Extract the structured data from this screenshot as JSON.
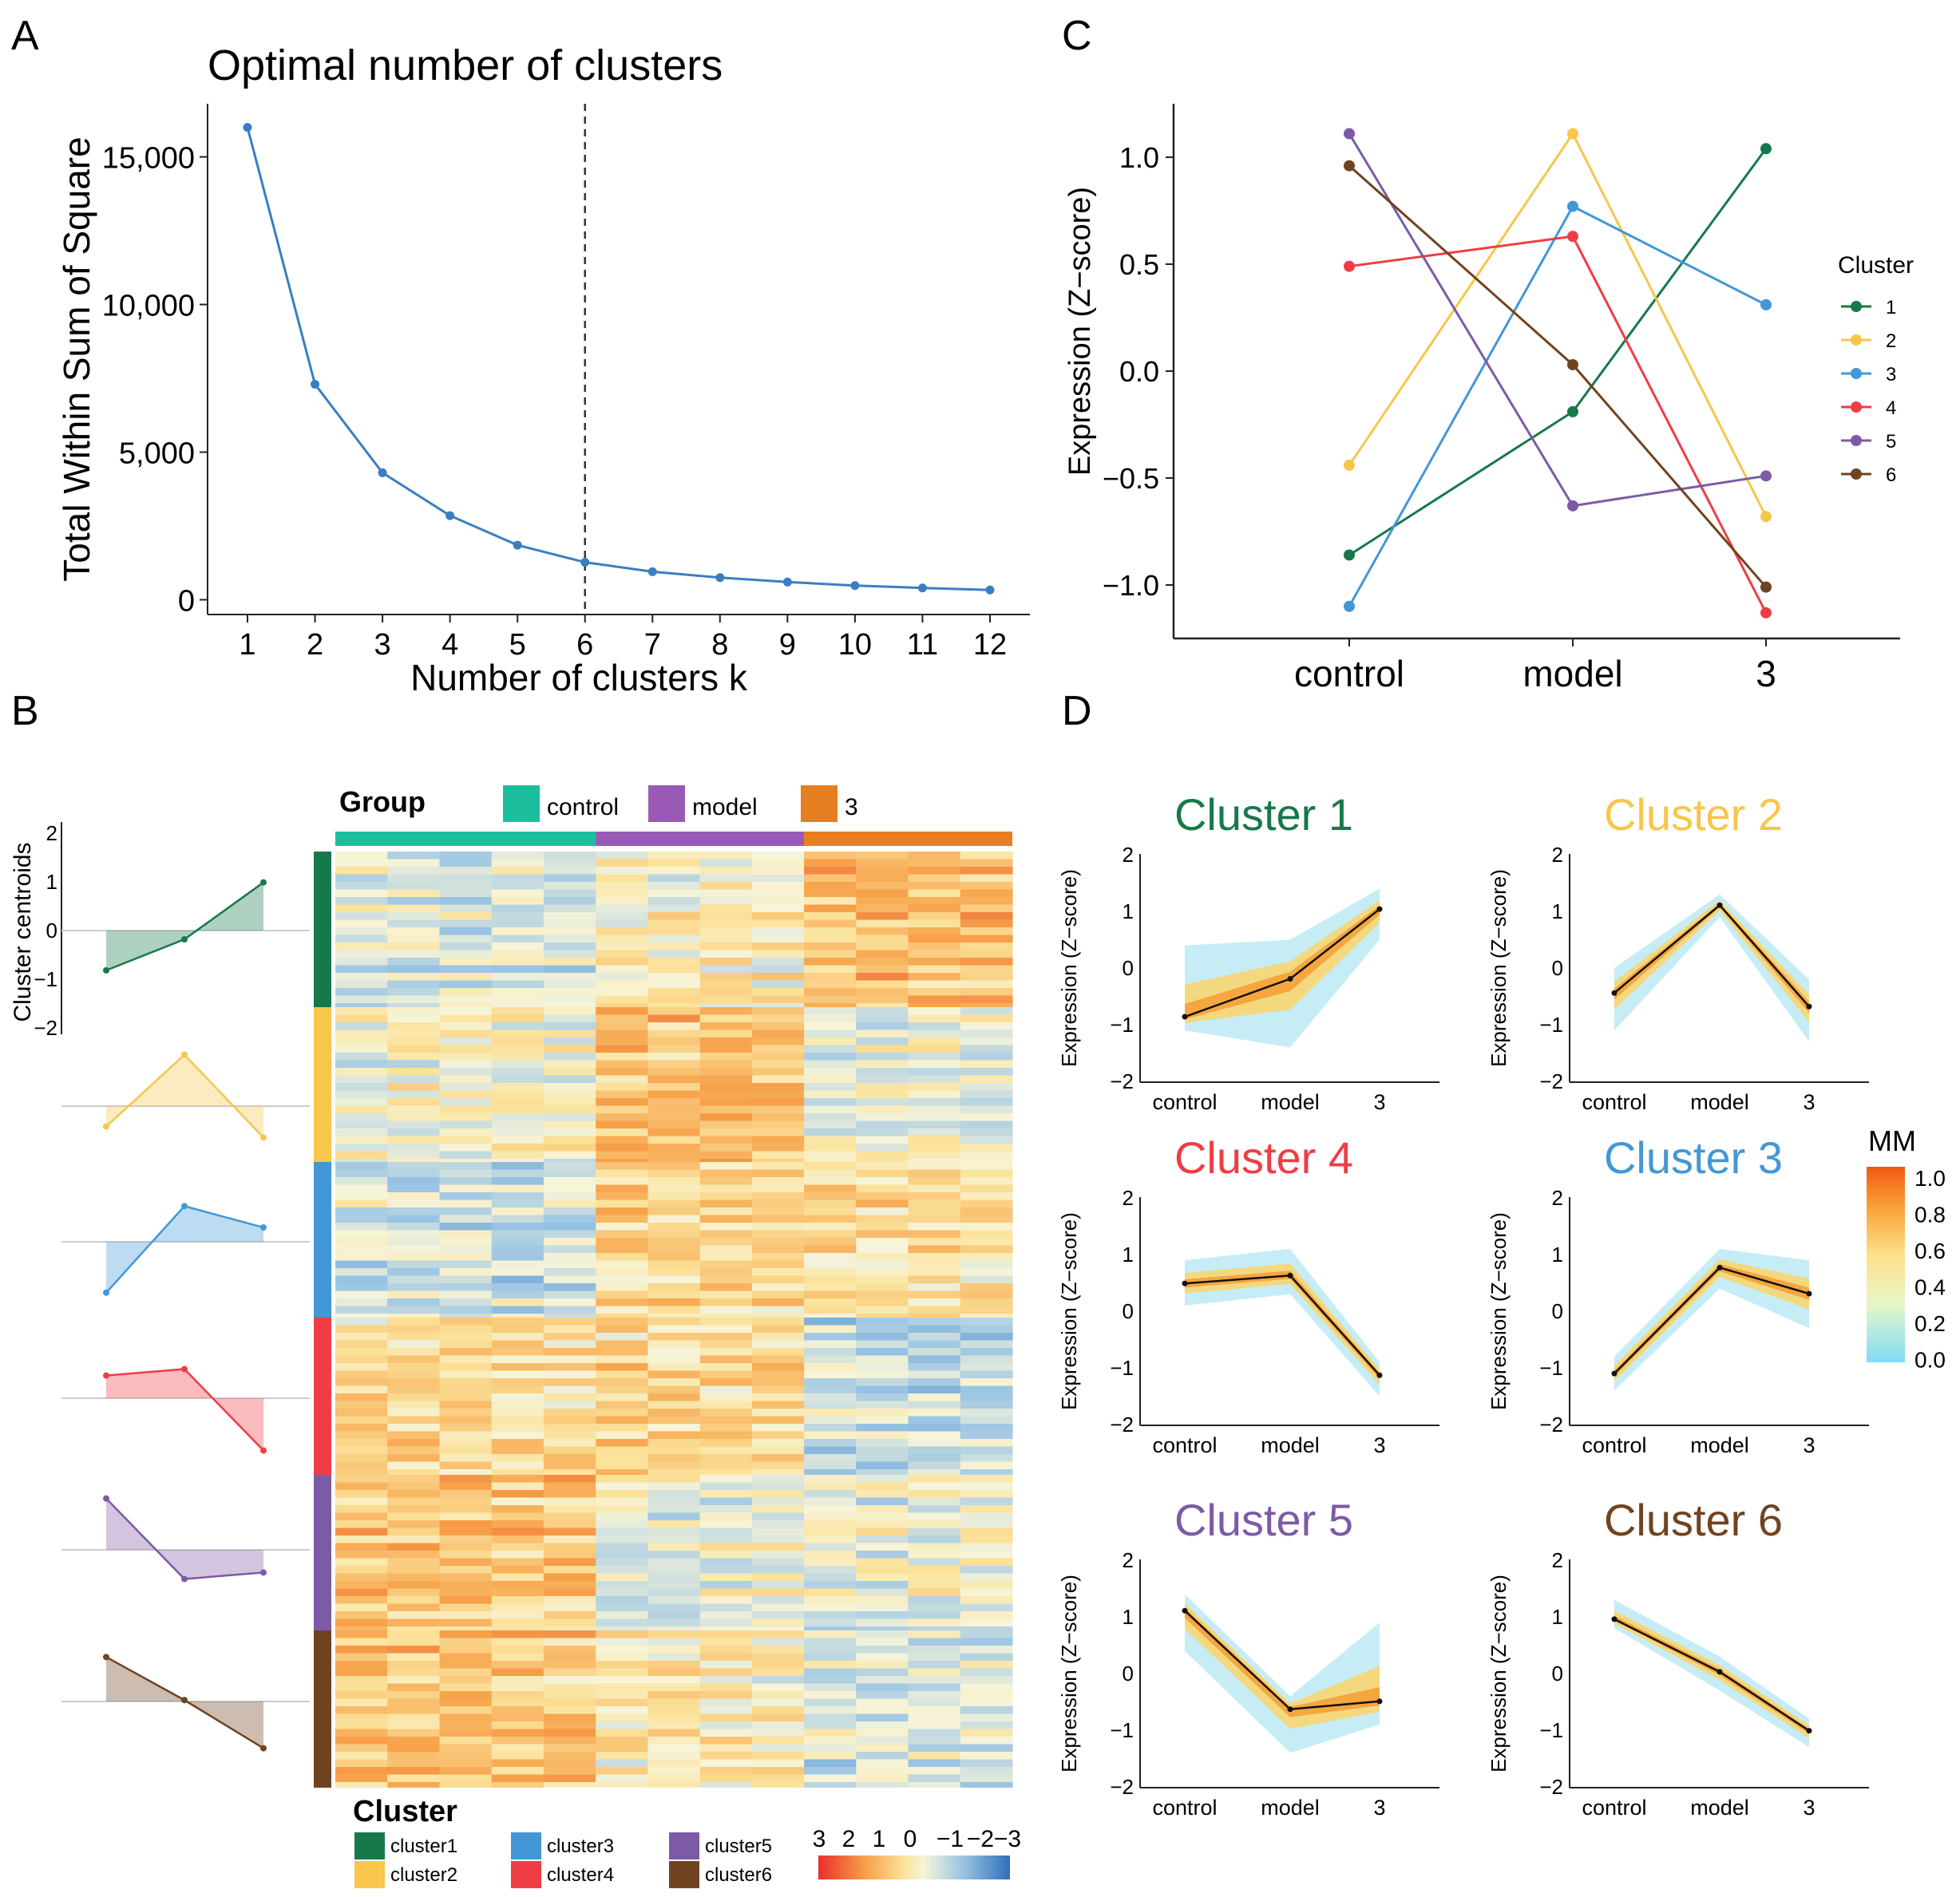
{
  "panels": {
    "a": {
      "letter": "A"
    },
    "b": {
      "letter": "B"
    },
    "c": {
      "letter": "C"
    },
    "d": {
      "letter": "D"
    }
  },
  "palette": {
    "clusters": [
      "#16794a",
      "#f7c64a",
      "#4397d6",
      "#ef3d45",
      "#7d5aa6",
      "#704320"
    ],
    "groups": [
      "#1bbf9b",
      "#9b59b6",
      "#e67e22"
    ],
    "line_a": "#3a7ec1"
  },
  "chart_data": [
    {
      "id": "A",
      "type": "line",
      "title": "Optimal number of clusters",
      "xlabel": "Number of clusters k",
      "ylabel": "Total Within Sum of Square",
      "x": [
        1,
        2,
        3,
        4,
        5,
        6,
        7,
        8,
        9,
        10,
        11,
        12
      ],
      "y": [
        16000,
        7300,
        4300,
        2850,
        1850,
        1270,
        950,
        750,
        600,
        480,
        400,
        330
      ],
      "ylim": [
        -500,
        16800
      ],
      "yticks": [
        0,
        5000,
        10000,
        15000
      ],
      "ytick_labels": [
        "0",
        "5,000",
        "10,000",
        "15,000"
      ],
      "vline": 6,
      "grid": false
    },
    {
      "id": "C",
      "type": "line",
      "ylabel": "Expression (Z−score)",
      "categories": [
        "control",
        "model",
        "3"
      ],
      "yticks": [
        -1.0,
        -0.5,
        0.0,
        0.5,
        1.0
      ],
      "ytick_labels": [
        "−1.0",
        "−0.5",
        "0.0",
        "0.5",
        "1.0"
      ],
      "ylim": [
        -1.25,
        1.25
      ],
      "legend_title": "Cluster",
      "legend_position": "right",
      "series": [
        {
          "name": "1",
          "values": [
            -0.86,
            -0.19,
            1.04
          ]
        },
        {
          "name": "2",
          "values": [
            -0.44,
            1.11,
            -0.68
          ]
        },
        {
          "name": "3",
          "values": [
            -1.1,
            0.77,
            0.31
          ]
        },
        {
          "name": "4",
          "values": [
            0.49,
            0.63,
            -1.13
          ]
        },
        {
          "name": "5",
          "values": [
            1.11,
            -0.63,
            -0.49
          ]
        },
        {
          "name": "6",
          "values": [
            0.96,
            0.03,
            -1.01
          ]
        }
      ]
    },
    {
      "id": "B",
      "type": "heatmap",
      "group_legend_title": "Group",
      "groups": [
        "control",
        "model",
        "3"
      ],
      "group_columns": [
        5,
        4,
        4
      ],
      "cluster_legend_title": "Cluster",
      "clusters": [
        "cluster1",
        "cluster2",
        "cluster3",
        "cluster4",
        "cluster5",
        "cluster6"
      ],
      "centroid_ylabel": "Cluster centroids",
      "centroid_ticks": [
        "2",
        "1",
        "0",
        "−1",
        "−2"
      ],
      "centroids": [
        [
          -0.86,
          -0.19,
          1.04
        ],
        [
          -0.44,
          1.11,
          -0.68
        ],
        [
          -1.1,
          0.77,
          0.31
        ],
        [
          0.49,
          0.63,
          -1.13
        ],
        [
          1.11,
          -0.63,
          -0.49
        ],
        [
          0.96,
          0.03,
          -1.01
        ]
      ],
      "colorscale_labels": [
        "3",
        "2",
        "1",
        "0",
        "−1",
        "−2",
        "−3"
      ],
      "block_patterns": [
        [
          -0.6,
          -0.1,
          0.9
        ],
        [
          -0.3,
          0.9,
          -0.5
        ],
        [
          -0.8,
          0.6,
          0.3
        ],
        [
          0.4,
          0.5,
          -0.9
        ],
        [
          0.8,
          -0.5,
          -0.4
        ],
        [
          0.7,
          0.0,
          -0.8
        ]
      ]
    },
    {
      "id": "D",
      "type": "line",
      "ylabel": "Expression (Z−score)",
      "categories": [
        "control",
        "model",
        "3"
      ],
      "yticks": [
        "2",
        "1",
        "0",
        "−1",
        "−2"
      ],
      "colorbar_title": "MM",
      "colorbar_ticks": [
        "1.0",
        "0.8",
        "0.6",
        "0.4",
        "0.2",
        "0.0"
      ],
      "panels": [
        {
          "title": "Cluster 1",
          "cluster": 1,
          "values": [
            -0.86,
            -0.19,
            1.04
          ],
          "lower": [
            -1.1,
            -1.4,
            0.5
          ],
          "upper": [
            0.4,
            0.5,
            1.4
          ]
        },
        {
          "title": "Cluster 2",
          "cluster": 2,
          "values": [
            -0.44,
            1.11,
            -0.68
          ],
          "lower": [
            -1.1,
            0.9,
            -1.3
          ],
          "upper": [
            0.0,
            1.3,
            -0.2
          ]
        },
        {
          "title": "Cluster 4",
          "cluster": 4,
          "values": [
            0.49,
            0.63,
            -1.13
          ],
          "lower": [
            0.1,
            0.3,
            -1.5
          ],
          "upper": [
            0.9,
            1.1,
            -0.9
          ]
        },
        {
          "title": "Cluster 3",
          "cluster": 3,
          "values": [
            -1.1,
            0.77,
            0.31
          ],
          "lower": [
            -1.4,
            0.4,
            -0.3
          ],
          "upper": [
            -0.8,
            1.1,
            0.9
          ]
        },
        {
          "title": "Cluster 5",
          "cluster": 5,
          "values": [
            1.11,
            -0.63,
            -0.49
          ],
          "lower": [
            0.4,
            -1.4,
            -0.9
          ],
          "upper": [
            1.4,
            -0.4,
            0.9
          ]
        },
        {
          "title": "Cluster 6",
          "cluster": 6,
          "values": [
            0.96,
            0.03,
            -1.01
          ],
          "lower": [
            0.8,
            -0.3,
            -1.3
          ],
          "upper": [
            1.3,
            0.3,
            -0.8
          ]
        }
      ]
    }
  ]
}
